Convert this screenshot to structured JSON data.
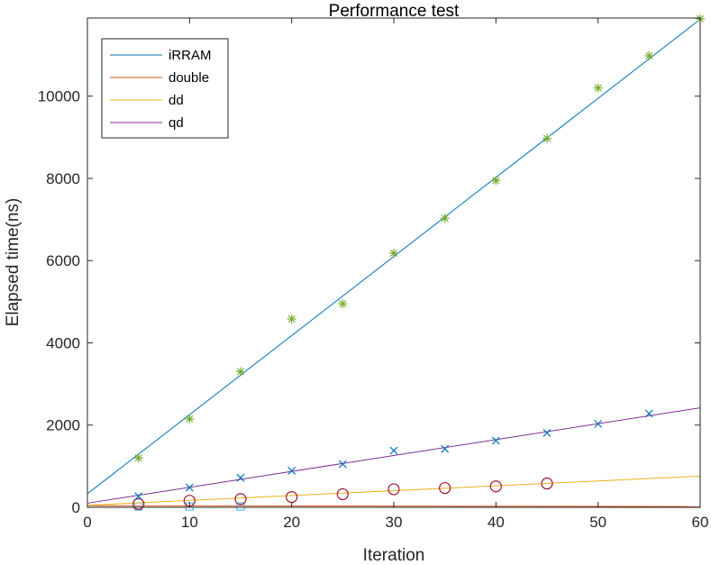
{
  "chart_data": {
    "type": "line",
    "title": "Performance test",
    "xlabel": "Iteration",
    "ylabel": "Elapsed time(ns)",
    "xlim": [
      0,
      60
    ],
    "ylim": [
      0,
      11900
    ],
    "xticks": [
      0,
      10,
      20,
      30,
      40,
      50,
      60
    ],
    "yticks": [
      0,
      2000,
      4000,
      6000,
      8000,
      10000
    ],
    "grid": false,
    "legend_position": "top-left",
    "series": [
      {
        "name": "iRRAM",
        "color": "#0072BD",
        "fit_line": {
          "x": [
            0,
            60
          ],
          "y": [
            330,
            11870
          ]
        },
        "marker": "asterisk",
        "marker_color": "#77AC30",
        "points": {
          "x": [
            5,
            10,
            15,
            20,
            25,
            30,
            35,
            40,
            45,
            50,
            55,
            60
          ],
          "y": [
            1200,
            2150,
            3300,
            4580,
            4950,
            6180,
            7030,
            7950,
            8970,
            10200,
            10980,
            11880
          ]
        }
      },
      {
        "name": "double",
        "color": "#D95319",
        "fit_line": {
          "x": [
            0,
            60
          ],
          "y": [
            40,
            20
          ]
        },
        "marker": "square",
        "marker_color": "#4DBEEE",
        "points": {
          "x": [
            5,
            10,
            15
          ],
          "y": [
            20,
            20,
            20
          ]
        }
      },
      {
        "name": "dd",
        "color": "#EDB120",
        "fit_line": {
          "x": [
            0,
            60
          ],
          "y": [
            50,
            760
          ]
        },
        "marker": "circle",
        "marker_color": "#A2142F",
        "points": {
          "x": [
            5,
            10,
            15,
            20,
            25,
            30,
            35,
            40,
            45
          ],
          "y": [
            80,
            160,
            200,
            250,
            320,
            440,
            470,
            510,
            580
          ]
        }
      },
      {
        "name": "qd",
        "color": "#7E2F8E",
        "fit_line": {
          "x": [
            0,
            60
          ],
          "y": [
            100,
            2420
          ]
        },
        "marker": "x",
        "marker_color": "#0072BD",
        "points": {
          "x": [
            5,
            10,
            15,
            20,
            25,
            30,
            35,
            40,
            45,
            50,
            55
          ],
          "y": [
            270,
            480,
            720,
            890,
            1050,
            1380,
            1420,
            1620,
            1810,
            2030,
            2280
          ]
        }
      }
    ]
  }
}
